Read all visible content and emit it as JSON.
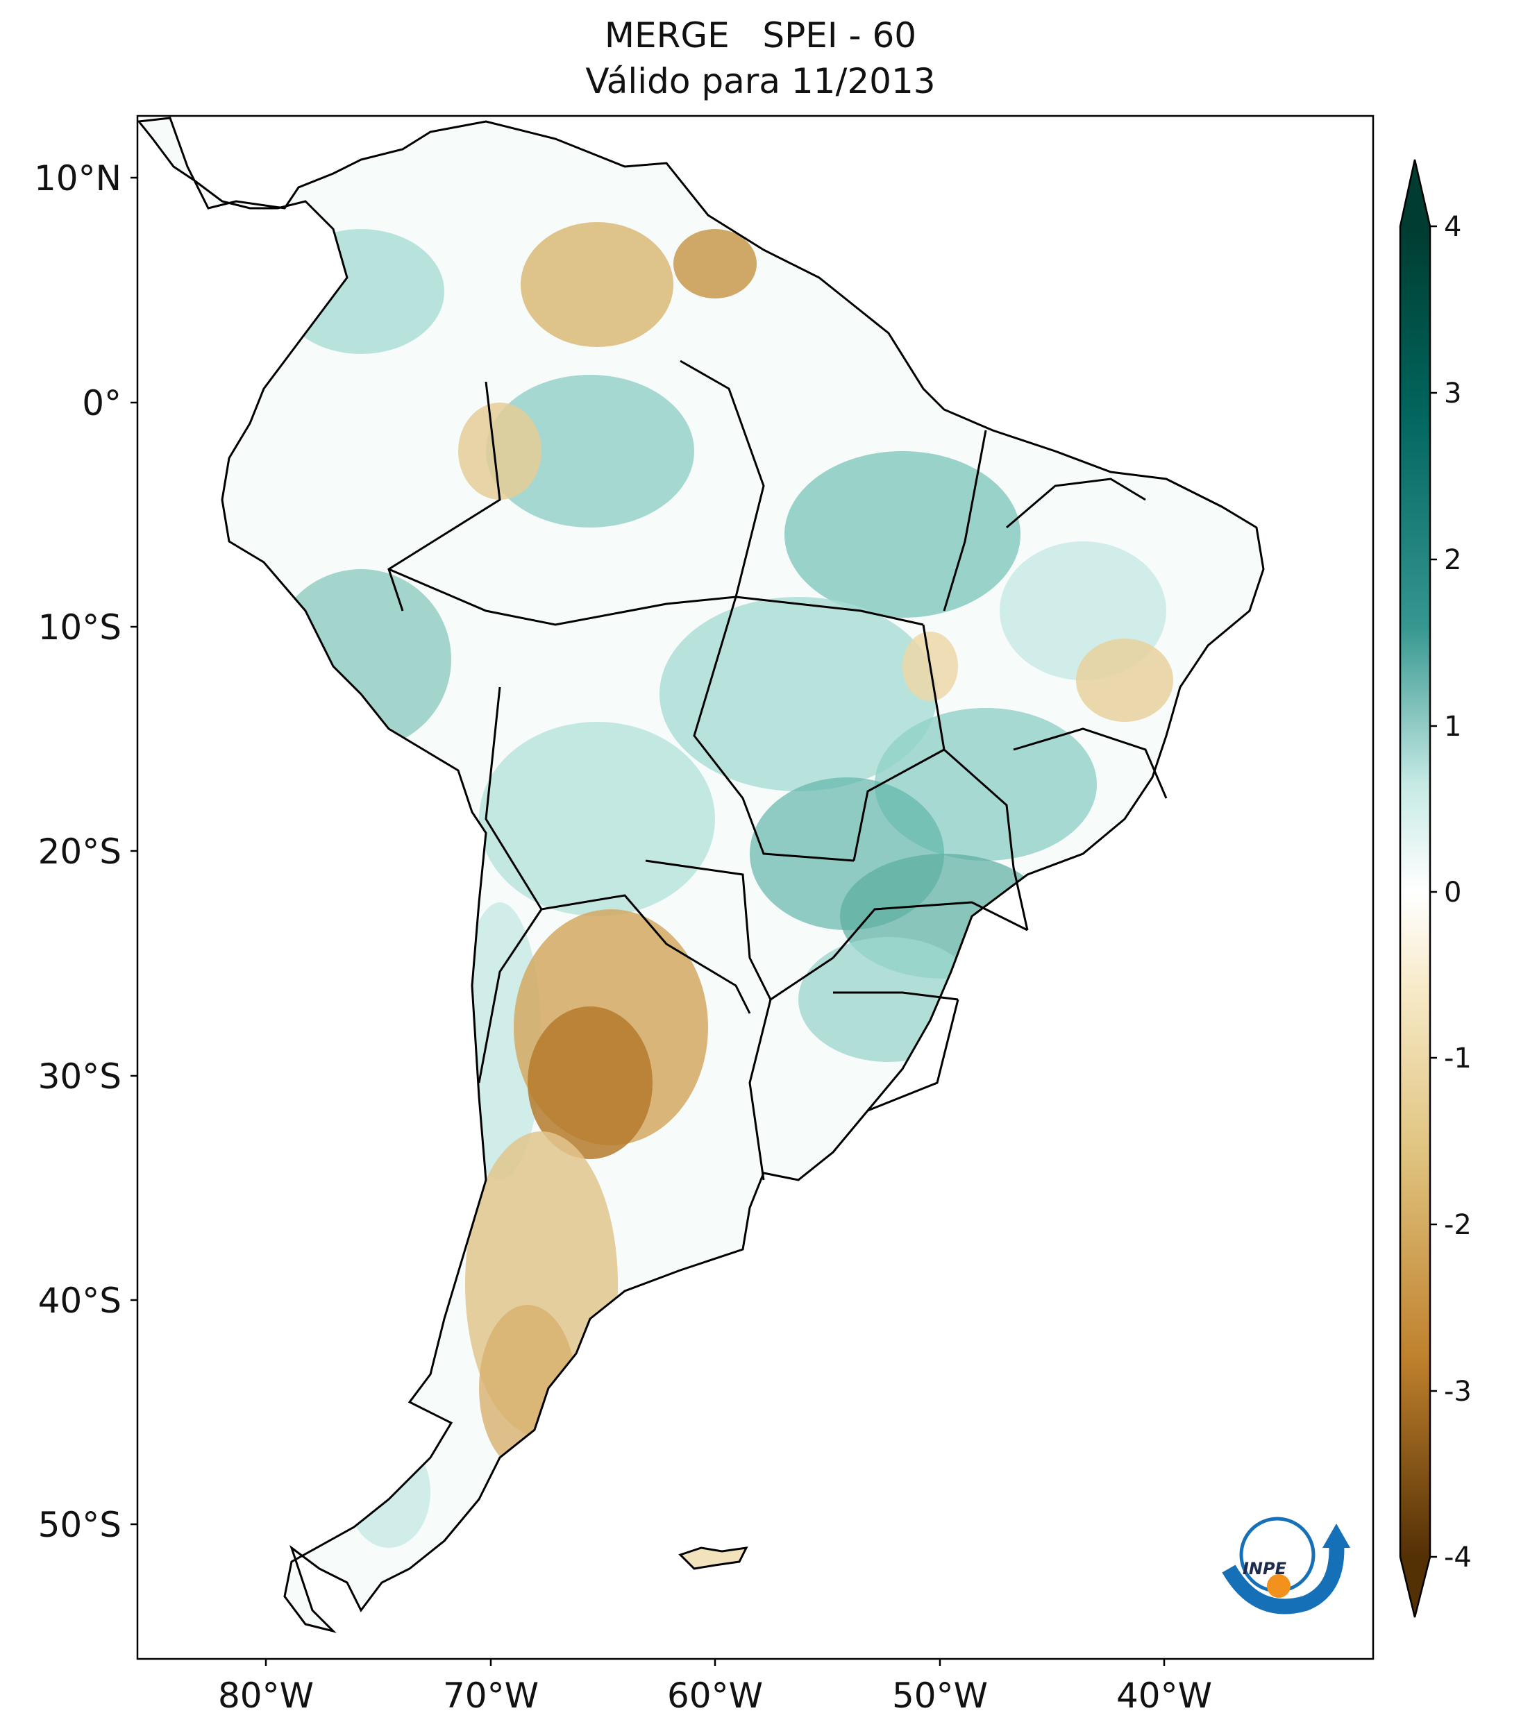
{
  "title_line1": "MERGE   SPEI - 60",
  "title_line2": "Válido para 11/2013",
  "map": {
    "lat_labels": [
      "10°N",
      "0°",
      "10°S",
      "20°S",
      "30°S",
      "40°S",
      "50°S"
    ],
    "lon_labels": [
      "80°W",
      "70°W",
      "60°W",
      "50°W",
      "40°W"
    ],
    "region": "South America"
  },
  "colorbar": {
    "ticks": [
      "4",
      "3",
      "2",
      "1",
      "0",
      "-1",
      "-2",
      "-3",
      "-4"
    ],
    "colors": {
      "max": "#003c30",
      "high": "#35978f",
      "mid_high": "#c7eae5",
      "zero": "#f5f5f5",
      "mid_low": "#f6e8c3",
      "low": "#bf812d",
      "min": "#543005"
    }
  },
  "logo": {
    "text": "INPE",
    "blue": "#1670b8",
    "orange": "#f2921d"
  }
}
